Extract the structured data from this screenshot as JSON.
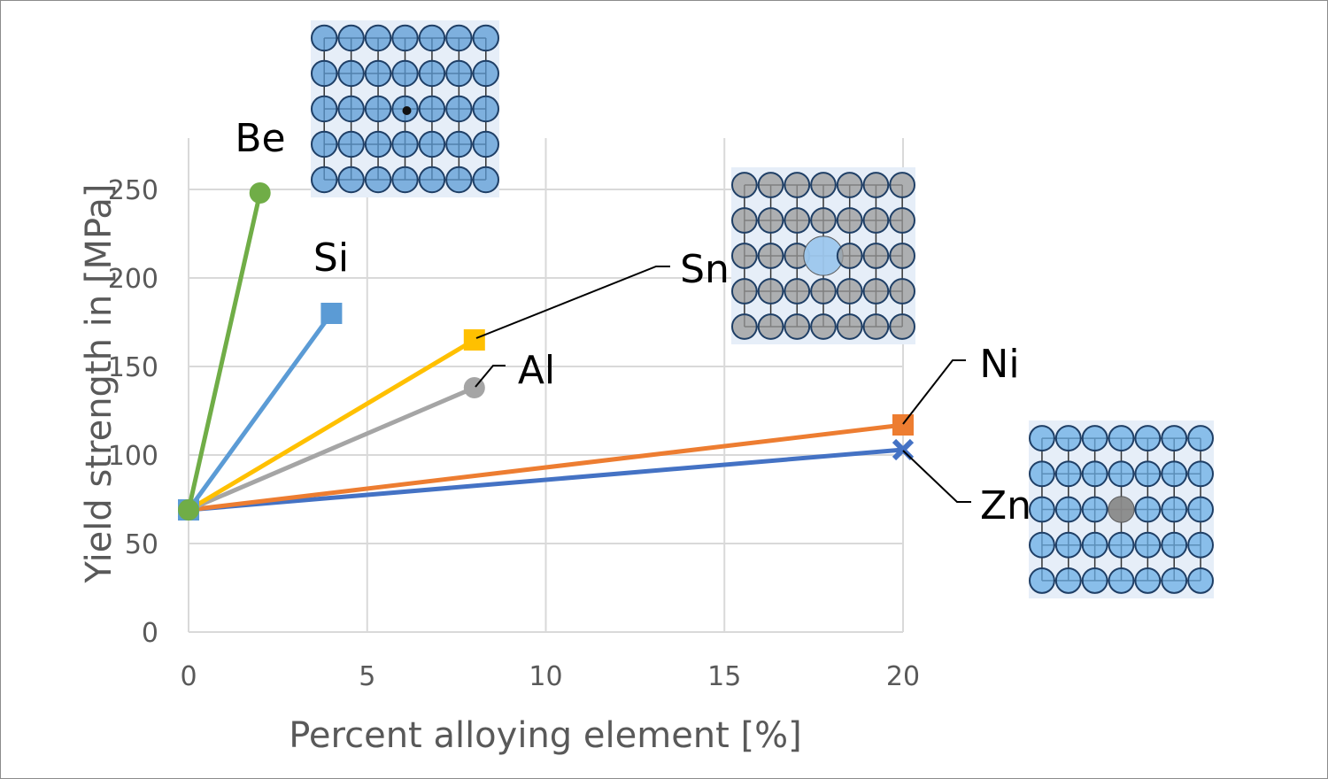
{
  "chart_data": {
    "type": "line",
    "xlabel": "Percent alloying element [%]",
    "ylabel": "Yield strength in [MPa]",
    "xlim": [
      0,
      20
    ],
    "ylim": [
      0,
      250
    ],
    "xticks": [
      "0",
      "5",
      "10",
      "15",
      "20"
    ],
    "yticks": [
      "0",
      "50",
      "100",
      "150",
      "200",
      "250"
    ],
    "grid": true,
    "legend": "none (direct labels)",
    "series": [
      {
        "name": "Be",
        "color": "#70AD47",
        "marker": "circle",
        "x": [
          0,
          2
        ],
        "y": [
          69,
          248
        ]
      },
      {
        "name": "Si",
        "color": "#5B9BD5",
        "marker": "square",
        "x": [
          0,
          4
        ],
        "y": [
          69,
          180
        ]
      },
      {
        "name": "Sn",
        "color": "#FFC000",
        "marker": "square",
        "x": [
          0,
          8
        ],
        "y": [
          69,
          165
        ]
      },
      {
        "name": "Al",
        "color": "#A5A5A5",
        "marker": "circle",
        "x": [
          0,
          8
        ],
        "y": [
          69,
          138
        ]
      },
      {
        "name": "Ni",
        "color": "#ED7D31",
        "marker": "square",
        "x": [
          0,
          20
        ],
        "y": [
          69,
          117
        ]
      },
      {
        "name": "Zn",
        "color": "#4472C4",
        "marker": "x",
        "x": [
          0,
          20
        ],
        "y": [
          69,
          103
        ]
      }
    ]
  },
  "illustrations": [
    {
      "name": "interstitial-lattice",
      "atom_color": "#5b9bd5",
      "solute_color": "#111111",
      "solute": "small"
    },
    {
      "name": "large-substitutional-lattice",
      "atom_color": "#9a9a9a",
      "solute_color": "#9dc8ee",
      "solute": "large"
    },
    {
      "name": "substitutional-lattice",
      "atom_color": "#6aaee6",
      "solute_color": "#8a8a8a",
      "solute": "same"
    }
  ]
}
